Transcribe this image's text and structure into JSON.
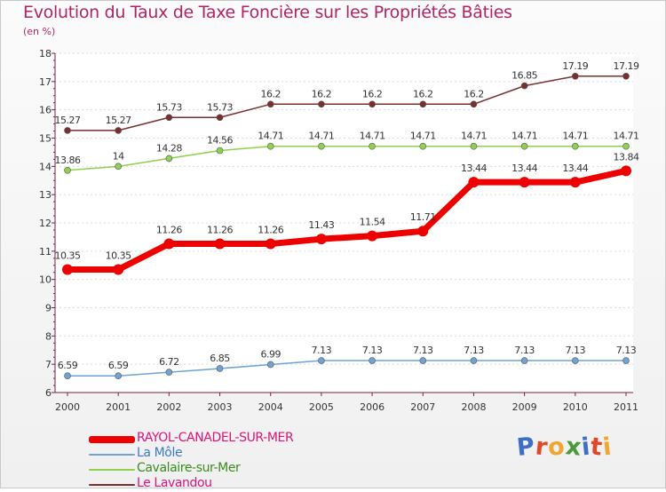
{
  "title": "Evolution du Taux de Taxe Foncière sur les Propriétés Bâties",
  "subtitle": "(en %)",
  "brand": {
    "letters": [
      "P",
      "r",
      "o",
      "x",
      "i",
      "t",
      "i"
    ],
    "colors": [
      "#3d6fc4",
      "#e0482a",
      "#f0a630",
      "#4a9a3a",
      "#3d6fc4",
      "#e0482a",
      "#f0a630"
    ]
  },
  "chart_data": {
    "type": "line",
    "title": "Evolution du Taux de Taxe Foncière sur les Propriétés Bâties",
    "ylabel": "(en %)",
    "xlabel": "",
    "categories": [
      "2000",
      "2001",
      "2002",
      "2003",
      "2004",
      "2005",
      "2006",
      "2007",
      "2008",
      "2009",
      "2010",
      "2011"
    ],
    "ylim": [
      6,
      18
    ],
    "yticks": [
      "6",
      "7",
      "8",
      "9",
      "10",
      "11",
      "12",
      "13",
      "14",
      "15",
      "16",
      "17",
      "18"
    ],
    "series": [
      {
        "name": "Le Lavandou",
        "color": "#7a2f2f",
        "values": [
          15.27,
          15.27,
          15.73,
          15.73,
          16.2,
          16.2,
          16.2,
          16.2,
          16.2,
          16.85,
          17.19,
          17.19
        ],
        "labels": [
          "15.27",
          "15.27",
          "15.73",
          "15.73",
          "16.2",
          "16.2",
          "16.2",
          "16.2",
          "16.2",
          "16.85",
          "17.19",
          "17.19"
        ]
      },
      {
        "name": "Cavalaire-sur-Mer",
        "color": "#8fd14f",
        "values": [
          13.86,
          14,
          14.28,
          14.56,
          14.71,
          14.71,
          14.71,
          14.71,
          14.71,
          14.71,
          14.71,
          14.71
        ],
        "labels": [
          "13.86",
          "14",
          "14.28",
          "14.56",
          "14.71",
          "14.71",
          "14.71",
          "14.71",
          "14.71",
          "14.71",
          "14.71",
          "14.71"
        ]
      },
      {
        "name": "RAYOL-CANADEL-SUR-MER",
        "color": "#ee0000",
        "values": [
          10.35,
          10.35,
          11.26,
          11.26,
          11.26,
          11.43,
          11.54,
          11.71,
          13.44,
          13.44,
          13.44,
          13.84
        ],
        "labels": [
          "10.35",
          "10.35",
          "11.26",
          "11.26",
          "11.26",
          "11.43",
          "11.54",
          "11.71",
          "13.44",
          "13.44",
          "13.44",
          "13.84"
        ]
      },
      {
        "name": "La Môle",
        "color": "#6fa3d4",
        "values": [
          6.59,
          6.59,
          6.72,
          6.85,
          6.99,
          7.13,
          7.13,
          7.13,
          7.13,
          7.13,
          7.13,
          7.13
        ],
        "labels": [
          "6.59",
          "6.59",
          "6.72",
          "6.85",
          "6.99",
          "7.13",
          "7.13",
          "7.13",
          "7.13",
          "7.13",
          "7.13",
          "7.13"
        ]
      }
    ],
    "legend": [
      {
        "name": "RAYOL-CANADEL-SUR-MER",
        "color": "#ee0000",
        "text_color": "#d8157a"
      },
      {
        "name": "La Môle",
        "color": "#6fa3d4",
        "text_color": "#3d7ac4"
      },
      {
        "name": "Cavalaire-sur-Mer",
        "color": "#8fd14f",
        "text_color": "#3a8a1e"
      },
      {
        "name": "Le Lavandou",
        "color": "#7a2f2f",
        "text_color": "#d8157a"
      }
    ],
    "legend_position": "bottom-left"
  }
}
